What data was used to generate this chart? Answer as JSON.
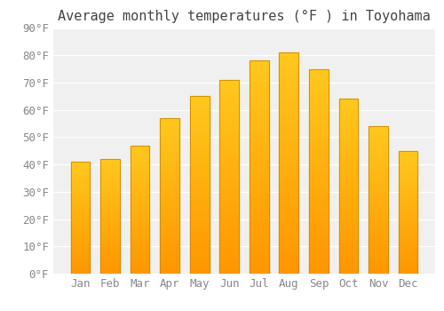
{
  "title": "Average monthly temperatures (°F ) in Toyohama",
  "months": [
    "Jan",
    "Feb",
    "Mar",
    "Apr",
    "May",
    "Jun",
    "Jul",
    "Aug",
    "Sep",
    "Oct",
    "Nov",
    "Dec"
  ],
  "values": [
    41,
    42,
    47,
    57,
    65,
    71,
    78,
    81,
    75,
    64,
    54,
    45
  ],
  "bar_color_top": "#FFA020",
  "bar_color_bottom": "#FFB84D",
  "bar_edge_color": "#CC8800",
  "ylim": [
    0,
    90
  ],
  "ytick_step": 10,
  "background_color": "#ffffff",
  "plot_bg_color": "#f0f0f0",
  "grid_color": "#ffffff",
  "title_fontsize": 11,
  "tick_fontsize": 9,
  "tick_color": "#888888",
  "title_color": "#444444"
}
